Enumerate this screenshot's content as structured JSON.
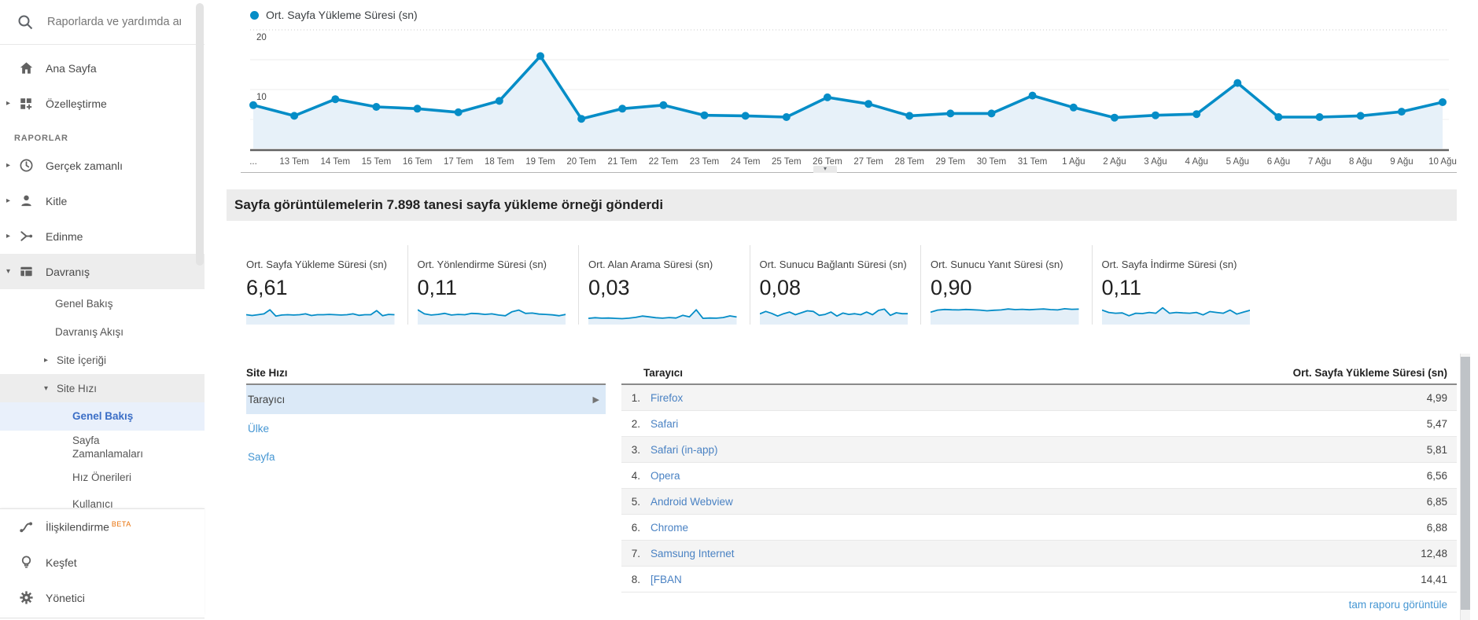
{
  "sidebar": {
    "search_placeholder": "Raporlarda ve yardımda ara",
    "ana_sayfa": "Ana Sayfa",
    "ozellestirme": "Özelleştirme",
    "section_raporlar": "RAPORLAR",
    "gercek_zamanli": "Gerçek zamanlı",
    "kitle": "Kitle",
    "edinme": "Edinme",
    "davranis": "Davranış",
    "davranis_genel_bakis": "Genel Bakış",
    "davranis_akisi": "Davranış Akışı",
    "site_icerigi": "Site İçeriği",
    "site_hizi": "Site Hızı",
    "site_hizi_genel_bakis": "Genel Bakış",
    "sayfa_zamanlamalari": "Sayfa Zamanlamaları",
    "hiz_onerileri": "Hız Önerileri",
    "kullanici": "Kullanıcı",
    "iliskilendirme": "İlişkilendirme",
    "beta": "BETA",
    "kesfet": "Keşfet",
    "yonetici": "Yönetici"
  },
  "chart_data": {
    "type": "line",
    "legend_label": "Ort. Sayfa Yükleme Süresi (sn)",
    "ylabel": "",
    "ylim": [
      0,
      20
    ],
    "yticks": [
      20,
      10
    ],
    "grid": "horizontal",
    "legend_position": "top-left",
    "line_color": "#058dc7",
    "fill_color": "#e7f1f9",
    "x": [
      "...",
      "13 Tem",
      "14 Tem",
      "15 Tem",
      "16 Tem",
      "17 Tem",
      "18 Tem",
      "19 Tem",
      "20 Tem",
      "21 Tem",
      "22 Tem",
      "23 Tem",
      "24 Tem",
      "25 Tem",
      "26 Tem",
      "27 Tem",
      "28 Tem",
      "29 Tem",
      "30 Tem",
      "31 Tem",
      "1 Ağu",
      "2 Ağu",
      "3 Ağu",
      "4 Ağu",
      "5 Ağu",
      "6 Ağu",
      "7 Ağu",
      "8 Ağu",
      "9 Ağu",
      "10 Ağu"
    ],
    "values": [
      7.4,
      5.6,
      8.4,
      7.1,
      6.8,
      6.2,
      8.1,
      15.6,
      5.1,
      6.8,
      7.4,
      5.7,
      5.6,
      5.4,
      8.7,
      7.6,
      5.6,
      6.0,
      6.0,
      9.0,
      7.0,
      5.3,
      5.7,
      5.9,
      11.1,
      5.4,
      5.4,
      5.6,
      6.3,
      7.9
    ]
  },
  "banner": {
    "text": "Sayfa görüntülemelerin 7.898 tanesi sayfa yükleme örneği gönderdi"
  },
  "cards": [
    {
      "title": "Ort. Sayfa Yükleme Süresi (sn)",
      "value": "6,61",
      "spark": [
        5,
        4.5,
        5,
        5.5,
        8,
        4.2,
        4.8,
        5,
        4.8,
        5,
        5.5,
        4.5,
        5,
        5,
        5.2,
        5,
        4.8,
        5,
        5.5,
        4.6,
        5,
        5,
        7.5,
        4.4,
        5.2,
        5
      ]
    },
    {
      "title": "Ort. Yönlendirme Süresi (sn)",
      "value": "0,11",
      "spark": [
        8,
        5.5,
        4.8,
        5.2,
        5.8,
        4.8,
        5.2,
        5,
        5.8,
        5.6,
        5.2,
        5.5,
        4.8,
        4.4,
        6.8,
        7.8,
        5.8,
        6,
        5.4,
        5.2,
        4.9,
        4.4,
        5.2
      ]
    },
    {
      "title": "Ort. Alan Arama Süresi (sn)",
      "value": "0,03",
      "spark": [
        2.8,
        3.2,
        2.9,
        3,
        2.8,
        2.6,
        2.9,
        3.4,
        4.2,
        3.7,
        3.2,
        2.9,
        3.3,
        3,
        4.6,
        3.7,
        8,
        2.8,
        3,
        2.9,
        3.3,
        4.3,
        3.6
      ]
    },
    {
      "title": "Ort. Sunucu Bağlantı Süresi (sn)",
      "value": "0,08",
      "spark": [
        5.5,
        7,
        5.8,
        4.2,
        5.6,
        6.6,
        5,
        6.2,
        7.4,
        7,
        4.6,
        5.2,
        6.6,
        4.2,
        6,
        5.2,
        5.6,
        5,
        6.6,
        5,
        7.6,
        8.4,
        4.6,
        6.2,
        5.6,
        5.6
      ]
    },
    {
      "title": "Ort. Sunucu Yanıt Süresi (sn)",
      "value": "0,90",
      "spark": [
        6.5,
        7.8,
        8.2,
        8,
        7.9,
        8.2,
        8,
        7.8,
        7.4,
        7.7,
        7.9,
        8.5,
        8.1,
        8.3,
        8,
        8.3,
        8.5,
        8.1,
        7.9,
        8.6,
        8.3,
        8.4
      ]
    },
    {
      "title": "Ort. Sayfa İndirme Süresi (sn)",
      "value": "0,11",
      "spark": [
        7.8,
        6.4,
        5.9,
        6.1,
        4.4,
        5.9,
        5.7,
        6.4,
        5.9,
        9.2,
        5.9,
        6.4,
        6.1,
        5.9,
        6.4,
        4.9,
        6.9,
        6.4,
        5.9,
        7.8,
        5.4,
        6.6,
        7.7
      ]
    }
  ],
  "explorer": {
    "left": {
      "title": "Site Hızı",
      "selected": "Tarayıcı",
      "links": [
        "Ülke",
        "Sayfa"
      ]
    },
    "table": {
      "headers": [
        "Tarayıcı",
        "Ort. Sayfa Yükleme Süresi (sn)"
      ],
      "rows": [
        {
          "rank": "1.",
          "browser": "Firefox",
          "value": "4,99"
        },
        {
          "rank": "2.",
          "browser": "Safari",
          "value": "5,47"
        },
        {
          "rank": "3.",
          "browser": "Safari (in-app)",
          "value": "5,81"
        },
        {
          "rank": "4.",
          "browser": "Opera",
          "value": "6,56"
        },
        {
          "rank": "5.",
          "browser": "Android Webview",
          "value": "6,85"
        },
        {
          "rank": "6.",
          "browser": "Chrome",
          "value": "6,88"
        },
        {
          "rank": "7.",
          "browser": "Samsung Internet",
          "value": "12,48"
        },
        {
          "rank": "8.",
          "browser": "[FBAN",
          "value": "14,41"
        }
      ]
    },
    "footer_link": "tam raporu görüntüle"
  }
}
